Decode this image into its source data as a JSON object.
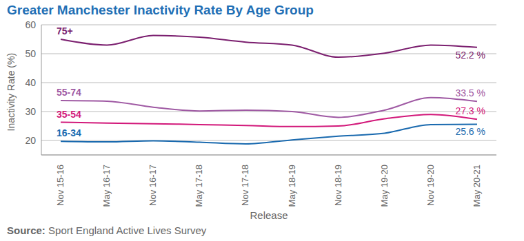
{
  "chart_data": {
    "type": "line",
    "title": "Greater Manchester Inactivity Rate By Age Group",
    "x_label": "Release",
    "y_label": "Inactivity Rate (%)",
    "source_label": "Source:",
    "source": "Sport England Active Lives Survey",
    "categories": [
      "Nov 15-16",
      "May 16-17",
      "Nov 16-17",
      "May 17-18",
      "Nov 17-18",
      "May 18-19",
      "Nov 18-19",
      "May 19-20",
      "Nov 19-20",
      "May 20-21"
    ],
    "series": [
      {
        "name": "75+",
        "color": "#7b1f6f",
        "values": [
          55,
          53,
          56.3,
          55.7,
          54,
          53,
          48.8,
          50.2,
          53,
          52.2
        ],
        "value_labels": [
          null,
          null,
          null,
          null,
          null,
          null,
          null,
          null,
          null,
          "52.2 %"
        ]
      },
      {
        "name": "55-74",
        "color": "#9f59a3",
        "values": [
          33.8,
          33.6,
          31.5,
          30.2,
          30.5,
          30,
          28,
          30.5,
          34.8,
          33.5
        ],
        "value_labels": [
          null,
          null,
          null,
          null,
          null,
          null,
          null,
          null,
          null,
          "33.5 %"
        ]
      },
      {
        "name": "35-54",
        "color": "#d2187a",
        "values": [
          26.3,
          26,
          25.8,
          25.5,
          25.2,
          24.8,
          25,
          27.5,
          29,
          27.3
        ],
        "value_labels": [
          null,
          null,
          null,
          null,
          null,
          null,
          null,
          null,
          null,
          "27.3 %"
        ]
      },
      {
        "name": "16-34",
        "color": "#1a6aaf",
        "values": [
          19.7,
          19.5,
          19.9,
          19.4,
          18.8,
          20.2,
          21.5,
          22.5,
          25.5,
          25.6
        ],
        "value_labels": [
          null,
          null,
          null,
          null,
          null,
          null,
          null,
          null,
          null,
          "25.6 %"
        ]
      }
    ],
    "ylim": [
      15,
      60
    ],
    "yticks": [
      20,
      30,
      40,
      50,
      60
    ],
    "grid": true
  }
}
